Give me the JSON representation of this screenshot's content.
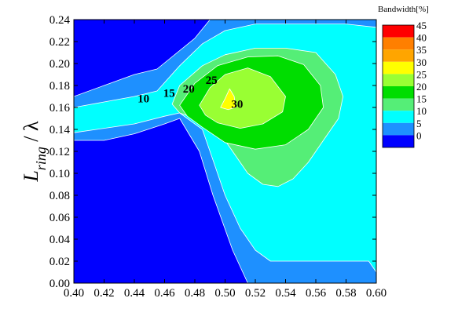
{
  "chart_data": {
    "type": "contour",
    "title": "",
    "xlabel": "",
    "ylabel": {
      "main": "L",
      "subscript": "ring",
      "suffix": " / λ"
    },
    "xlim": [
      0.4,
      0.6
    ],
    "ylim": [
      0.0,
      0.24
    ],
    "x_ticks": [
      "0.40",
      "0.42",
      "0.44",
      "0.46",
      "0.48",
      "0.50",
      "0.52",
      "0.54",
      "0.56",
      "0.58",
      "0.60"
    ],
    "y_ticks": [
      "0.00",
      "0.02",
      "0.04",
      "0.06",
      "0.08",
      "0.10",
      "0.12",
      "0.14",
      "0.16",
      "0.18",
      "0.20",
      "0.22",
      "0.24"
    ],
    "grid": false,
    "legend": {
      "title": "Bandwidth[%]",
      "placement": "right",
      "levels": [
        {
          "label": "45",
          "color": "#ff0000"
        },
        {
          "label": "40",
          "color": "#ff7f00"
        },
        {
          "label": "35",
          "color": "#ffa500"
        },
        {
          "label": "30",
          "color": "#ffff00"
        },
        {
          "label": "25",
          "color": "#99ff33"
        },
        {
          "label": "20",
          "color": "#00dd00"
        },
        {
          "label": "15",
          "color": "#55ee77"
        },
        {
          "label": "10",
          "color": "#00ffff"
        },
        {
          "label": "5",
          "color": "#1e90ff"
        },
        {
          "label": "0",
          "color": "#0000ff"
        }
      ]
    },
    "contours": [
      {
        "level": 5,
        "color": "#1e90ff",
        "points": [
          [
            0.4,
            0.13
          ],
          [
            0.4,
            0.17
          ],
          [
            0.42,
            0.18
          ],
          [
            0.44,
            0.19
          ],
          [
            0.455,
            0.195
          ],
          [
            0.48,
            0.223
          ],
          [
            0.49,
            0.24
          ],
          [
            0.6,
            0.24
          ],
          [
            0.6,
            0.0
          ],
          [
            0.515,
            0.0
          ],
          [
            0.505,
            0.03
          ],
          [
            0.492,
            0.08
          ],
          [
            0.483,
            0.12
          ],
          [
            0.47,
            0.15
          ],
          [
            0.46,
            0.145
          ],
          [
            0.44,
            0.136
          ],
          [
            0.42,
            0.13
          ]
        ]
      },
      {
        "level": 10,
        "color": "#00ffff",
        "points": [
          [
            0.4,
            0.137
          ],
          [
            0.4,
            0.16
          ],
          [
            0.42,
            0.165
          ],
          [
            0.44,
            0.17
          ],
          [
            0.455,
            0.175
          ],
          [
            0.47,
            0.198
          ],
          [
            0.485,
            0.218
          ],
          [
            0.5,
            0.23
          ],
          [
            0.52,
            0.236
          ],
          [
            0.55,
            0.236
          ],
          [
            0.58,
            0.236
          ],
          [
            0.6,
            0.233
          ],
          [
            0.6,
            0.01
          ],
          [
            0.595,
            0.02
          ],
          [
            0.58,
            0.02
          ],
          [
            0.56,
            0.02
          ],
          [
            0.54,
            0.02
          ],
          [
            0.53,
            0.02
          ],
          [
            0.52,
            0.03
          ],
          [
            0.51,
            0.05
          ],
          [
            0.5,
            0.08
          ],
          [
            0.495,
            0.1
          ],
          [
            0.49,
            0.12
          ],
          [
            0.485,
            0.14
          ],
          [
            0.47,
            0.155
          ],
          [
            0.46,
            0.152
          ],
          [
            0.44,
            0.145
          ],
          [
            0.42,
            0.141
          ]
        ]
      },
      {
        "level": 15,
        "color": "#55ee77",
        "points": [
          [
            0.465,
            0.163
          ],
          [
            0.47,
            0.18
          ],
          [
            0.485,
            0.198
          ],
          [
            0.5,
            0.208
          ],
          [
            0.52,
            0.214
          ],
          [
            0.54,
            0.214
          ],
          [
            0.56,
            0.21
          ],
          [
            0.573,
            0.19
          ],
          [
            0.578,
            0.17
          ],
          [
            0.575,
            0.15
          ],
          [
            0.565,
            0.13
          ],
          [
            0.555,
            0.11
          ],
          [
            0.545,
            0.095
          ],
          [
            0.535,
            0.088
          ],
          [
            0.525,
            0.09
          ],
          [
            0.515,
            0.1
          ],
          [
            0.505,
            0.12
          ],
          [
            0.495,
            0.14
          ],
          [
            0.48,
            0.15
          ],
          [
            0.47,
            0.155
          ]
        ]
      },
      {
        "level": 20,
        "color": "#00dd00",
        "points": [
          [
            0.47,
            0.162
          ],
          [
            0.48,
            0.182
          ],
          [
            0.495,
            0.198
          ],
          [
            0.515,
            0.206
          ],
          [
            0.535,
            0.207
          ],
          [
            0.552,
            0.199
          ],
          [
            0.563,
            0.18
          ],
          [
            0.565,
            0.16
          ],
          [
            0.555,
            0.14
          ],
          [
            0.54,
            0.126
          ],
          [
            0.52,
            0.122
          ],
          [
            0.5,
            0.128
          ],
          [
            0.485,
            0.142
          ],
          [
            0.475,
            0.152
          ]
        ]
      },
      {
        "level": 25,
        "color": "#99ff33",
        "points": [
          [
            0.483,
            0.162
          ],
          [
            0.49,
            0.178
          ],
          [
            0.5,
            0.19
          ],
          [
            0.515,
            0.196
          ],
          [
            0.53,
            0.188
          ],
          [
            0.54,
            0.17
          ],
          [
            0.538,
            0.156
          ],
          [
            0.525,
            0.145
          ],
          [
            0.51,
            0.141
          ],
          [
            0.495,
            0.146
          ],
          [
            0.487,
            0.153
          ]
        ]
      },
      {
        "level": 30,
        "color": "#ffff00",
        "points": [
          [
            0.497,
            0.16
          ],
          [
            0.5,
            0.168
          ],
          [
            0.503,
            0.177
          ],
          [
            0.506,
            0.17
          ],
          [
            0.507,
            0.16
          ],
          [
            0.502,
            0.158
          ]
        ]
      }
    ],
    "contour_labels": [
      {
        "text": "10",
        "x": 0.446,
        "y": 0.167
      },
      {
        "text": "15",
        "x": 0.463,
        "y": 0.172
      },
      {
        "text": "20",
        "x": 0.476,
        "y": 0.176
      },
      {
        "text": "25",
        "x": 0.491,
        "y": 0.184
      },
      {
        "text": "30",
        "x": 0.508,
        "y": 0.162
      }
    ]
  }
}
